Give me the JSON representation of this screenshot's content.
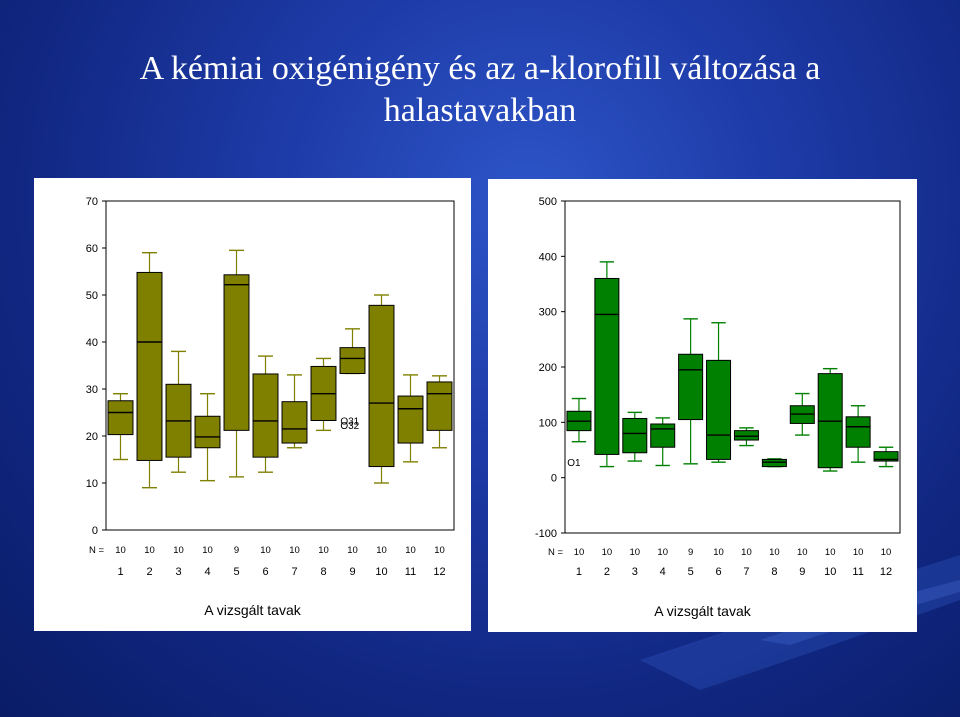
{
  "slide": {
    "title_line1": "A kémiai oxigénigény és az a-klorofill változása a",
    "title_line2": "halastavakban",
    "background": "#1d3aa6"
  },
  "chart_data": [
    {
      "type": "boxplot",
      "xlabel": "A vizsgált tavak",
      "ylabel": "",
      "ylim": [
        0,
        70
      ],
      "yticks": [
        0,
        10,
        20,
        30,
        40,
        50,
        60,
        70
      ],
      "categories": [
        "1",
        "2",
        "3",
        "4",
        "5",
        "6",
        "7",
        "8",
        "9",
        "10",
        "11",
        "12"
      ],
      "n_label": "N =",
      "n": [
        "10",
        "10",
        "10",
        "10",
        "9",
        "10",
        "10",
        "10",
        "10",
        "10",
        "10",
        "10"
      ],
      "color": "#808000",
      "boxes": [
        {
          "min": 15,
          "q1": 20.3,
          "median": 25,
          "q3": 27.5,
          "max": 29
        },
        {
          "min": 9,
          "q1": 14.8,
          "median": 40,
          "q3": 54.8,
          "max": 59
        },
        {
          "min": 12.3,
          "q1": 15.5,
          "median": 23.2,
          "q3": 31,
          "max": 38
        },
        {
          "min": 10.5,
          "q1": 17.5,
          "median": 19.8,
          "q3": 24.2,
          "max": 29
        },
        {
          "min": 11.3,
          "q1": 21.2,
          "median": 52.2,
          "q3": 54.3,
          "max": 59.5
        },
        {
          "min": 12.3,
          "q1": 15.5,
          "median": 23.2,
          "q3": 33.2,
          "max": 37
        },
        {
          "min": 17.5,
          "q1": 18.5,
          "median": 21.5,
          "q3": 27.3,
          "max": 33
        },
        {
          "min": 21.2,
          "q1": 23.3,
          "median": 29,
          "q3": 34.8,
          "max": 36.5
        },
        {
          "min": 33.3,
          "q1": 33.3,
          "median": 36.5,
          "q3": 38.8,
          "max": 42.8
        },
        {
          "min": 10,
          "q1": 13.5,
          "median": 27,
          "q3": 47.8,
          "max": 50
        },
        {
          "min": 14.5,
          "q1": 18.5,
          "median": 25.8,
          "q3": 28.5,
          "max": 33
        },
        {
          "min": 17.5,
          "q1": 21.2,
          "median": 29,
          "q3": 31.5,
          "max": 32.8
        }
      ],
      "outliers": [
        {
          "category": "9",
          "value": 23.3,
          "label": "O31"
        },
        {
          "category": "9",
          "value": 22.3,
          "label": "O32"
        }
      ]
    },
    {
      "type": "boxplot",
      "xlabel": "A vizsgált tavak",
      "ylabel": "",
      "ylim": [
        -100,
        500
      ],
      "yticks": [
        -100,
        0,
        100,
        200,
        300,
        400,
        500
      ],
      "categories": [
        "1",
        "2",
        "3",
        "4",
        "5",
        "6",
        "7",
        "8",
        "9",
        "10",
        "11",
        "12"
      ],
      "n_label": "N =",
      "n": [
        "10",
        "10",
        "10",
        "10",
        "9",
        "10",
        "10",
        "10",
        "10",
        "10",
        "10",
        "10"
      ],
      "color": "#008000",
      "boxes": [
        {
          "min": 65,
          "q1": 85,
          "median": 102,
          "q3": 120,
          "max": 143
        },
        {
          "min": 20,
          "q1": 42,
          "median": 295,
          "q3": 360,
          "max": 390
        },
        {
          "min": 30,
          "q1": 45,
          "median": 80,
          "q3": 107,
          "max": 118
        },
        {
          "min": 22,
          "q1": 55,
          "median": 88,
          "q3": 97,
          "max": 108
        },
        {
          "min": 25,
          "q1": 105,
          "median": 195,
          "q3": 223,
          "max": 287
        },
        {
          "min": 28,
          "q1": 33,
          "median": 77,
          "q3": 212,
          "max": 280
        },
        {
          "min": 58,
          "q1": 68,
          "median": 75,
          "q3": 85,
          "max": 90
        },
        {
          "min": 20,
          "q1": 20,
          "median": 28,
          "q3": 33,
          "max": 34
        },
        {
          "min": 77,
          "q1": 98,
          "median": 115,
          "q3": 130,
          "max": 152
        },
        {
          "min": 12,
          "q1": 18,
          "median": 102,
          "q3": 188,
          "max": 197
        },
        {
          "min": 28,
          "q1": 55,
          "median": 92,
          "q3": 110,
          "max": 130
        },
        {
          "min": 20,
          "q1": 30,
          "median": 33,
          "q3": 47,
          "max": 55
        }
      ],
      "outliers": [
        {
          "category": "1",
          "value": 28,
          "label": "O1"
        }
      ]
    }
  ]
}
